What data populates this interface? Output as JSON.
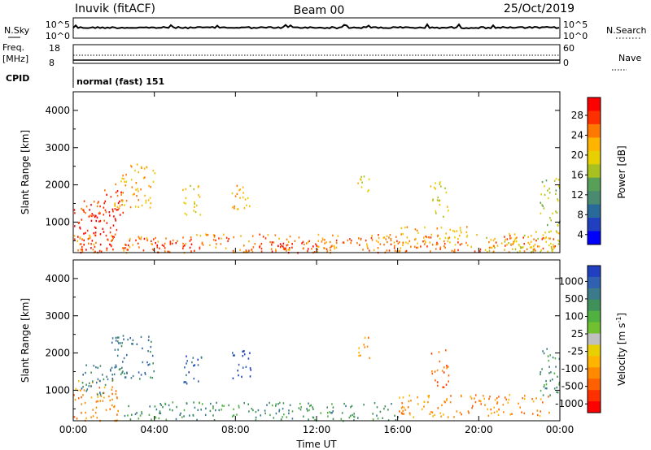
{
  "header": {
    "title_left": "Inuvik (fitACF)",
    "title_center": "Beam 00",
    "title_right": "25/Oct/2019"
  },
  "top_panels": {
    "nsky_label": "N.Sky",
    "nsky_ticks_left": [
      "10^5",
      "10^0"
    ],
    "nsky_ticks_right": [
      "10^5",
      "10^0"
    ],
    "nsearch_label": "N.Search",
    "freq_label_1": "Freq.",
    "freq_label_2": "[MHz]",
    "freq_ticks_left": [
      "18",
      "8"
    ],
    "nave_ticks_right": [
      "60",
      "0"
    ],
    "nave_label": "Nave",
    "cpid_label": "CPID",
    "cpid_text": "normal (fast) 151"
  },
  "chart_data": [
    {
      "type": "heatmap",
      "title": "",
      "xlabel": "",
      "ylabel": "Slant Range [km]",
      "xlim": [
        0,
        24
      ],
      "ylim": [
        180,
        4500
      ],
      "x_ticks": [
        0,
        4,
        8,
        12,
        16,
        20,
        24
      ],
      "x_tick_labels": [
        "00:00",
        "04:00",
        "08:00",
        "12:00",
        "16:00",
        "20:00",
        "00:00"
      ],
      "y_ticks": [
        1000,
        2000,
        3000,
        4000
      ],
      "y_tick_labels": [
        "1000",
        "2000",
        "3000",
        "4000"
      ],
      "colorbar_label": "Power [dB]",
      "colorbar_ticks": [
        "28",
        "24",
        "20",
        "16",
        "12",
        "8",
        "4"
      ],
      "colorbar_colors": [
        "#ff0000",
        "#ff3000",
        "#ff7800",
        "#ffb400",
        "#e8d000",
        "#a8c020",
        "#58a058",
        "#4a8a70",
        "#2a6a9a",
        "#2040c0",
        "#0000ff"
      ],
      "blobs": [
        {
          "t0": 0.0,
          "t1": 2.2,
          "r0": 200,
          "r1": 1400,
          "c": 0
        },
        {
          "t0": 0.3,
          "t1": 1.6,
          "r0": 900,
          "r1": 1600,
          "c": 1
        },
        {
          "t0": 1.5,
          "t1": 2.6,
          "r0": 1200,
          "r1": 1900,
          "c": 1
        },
        {
          "t0": 2.0,
          "t1": 4.0,
          "r0": 1400,
          "r1": 2600,
          "c": 3
        },
        {
          "t0": 2.5,
          "t1": 6.0,
          "r0": 200,
          "r1": 600,
          "c": 1
        },
        {
          "t0": 0.0,
          "t1": 24.0,
          "r0": 200,
          "r1": 700,
          "c": 2
        },
        {
          "t0": 5.3,
          "t1": 6.3,
          "r0": 1200,
          "r1": 2000,
          "c": 4
        },
        {
          "t0": 7.8,
          "t1": 8.8,
          "r0": 1300,
          "r1": 2100,
          "c": 3
        },
        {
          "t0": 9.0,
          "t1": 12.0,
          "r0": 200,
          "r1": 500,
          "c": 0
        },
        {
          "t0": 12.0,
          "t1": 16.0,
          "r0": 200,
          "r1": 600,
          "c": 2
        },
        {
          "t0": 14.0,
          "t1": 14.6,
          "r0": 1800,
          "r1": 2500,
          "c": 4
        },
        {
          "t0": 16.0,
          "t1": 19.5,
          "r0": 400,
          "r1": 900,
          "c": 3
        },
        {
          "t0": 17.6,
          "t1": 18.5,
          "r0": 1100,
          "r1": 2100,
          "c": 4
        },
        {
          "t0": 20.0,
          "t1": 24.0,
          "r0": 200,
          "r1": 800,
          "c": 4
        },
        {
          "t0": 23.0,
          "t1": 24.0,
          "r0": 900,
          "r1": 2200,
          "c": 5
        }
      ]
    },
    {
      "type": "heatmap",
      "title": "",
      "xlabel": "Time UT",
      "ylabel": "Slant Range [km]",
      "xlim": [
        0,
        24
      ],
      "ylim": [
        180,
        4500
      ],
      "x_ticks": [
        0,
        4,
        8,
        12,
        16,
        20,
        24
      ],
      "x_tick_labels": [
        "00:00",
        "04:00",
        "08:00",
        "12:00",
        "16:00",
        "20:00",
        "00:00"
      ],
      "y_ticks": [
        1000,
        2000,
        3000,
        4000
      ],
      "y_tick_labels": [
        "1000",
        "2000",
        "3000",
        "4000"
      ],
      "colorbar_label": "Velocity  [m s",
      "colorbar_label_sup": "-1",
      "colorbar_label_end": "]",
      "colorbar_ticks": [
        "1000",
        "500",
        "100",
        "25",
        "-25",
        "-100",
        "-500",
        "-1000"
      ],
      "colorbar_colors": [
        "#2040c0",
        "#3060b0",
        "#3a7a8a",
        "#40905a",
        "#50b040",
        "#70c030",
        "#c0c0c0",
        "#e8d000",
        "#ffb400",
        "#ff8a00",
        "#ff6000",
        "#ff3000",
        "#ff0000"
      ],
      "blobs": [
        {
          "t0": 0.0,
          "t1": 2.2,
          "r0": 200,
          "r1": 1300,
          "c": 9
        },
        {
          "t0": 0.3,
          "t1": 2.0,
          "r0": 900,
          "r1": 1700,
          "c": 2
        },
        {
          "t0": 1.8,
          "t1": 4.0,
          "r0": 1300,
          "r1": 2500,
          "c": 2
        },
        {
          "t0": 2.5,
          "t1": 9.0,
          "r0": 200,
          "r1": 700,
          "c": 3
        },
        {
          "t0": 5.3,
          "t1": 6.3,
          "r0": 1200,
          "r1": 2000,
          "c": 1
        },
        {
          "t0": 7.8,
          "t1": 8.8,
          "r0": 1300,
          "r1": 2100,
          "c": 0
        },
        {
          "t0": 9.0,
          "t1": 16.0,
          "r0": 200,
          "r1": 700,
          "c": 3
        },
        {
          "t0": 14.0,
          "t1": 14.6,
          "r0": 1800,
          "r1": 2500,
          "c": 9
        },
        {
          "t0": 16.0,
          "t1": 23.5,
          "r0": 300,
          "r1": 900,
          "c": 9
        },
        {
          "t0": 17.6,
          "t1": 18.5,
          "r0": 1100,
          "r1": 2100,
          "c": 10
        },
        {
          "t0": 23.0,
          "t1": 24.0,
          "r0": 800,
          "r1": 2200,
          "c": 3
        }
      ]
    }
  ]
}
